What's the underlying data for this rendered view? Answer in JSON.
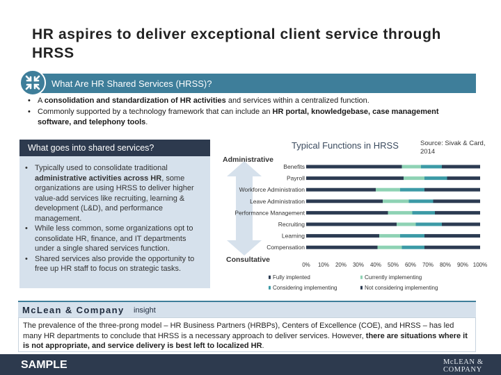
{
  "slide": {
    "title": "HR aspires to deliver exceptional client service through HRSS",
    "banner_label": "What Are HR Shared Services (HRSS)?",
    "intro_bullets": [
      {
        "pre": "A ",
        "bold": "consolidation and standardization of HR activities",
        "post": " and services within a centralized function."
      },
      {
        "pre": "Commonly supported by a technology framework that can include an ",
        "bold": "HR portal, knowledgebase, case management software, and telephony tools",
        "post": "."
      }
    ],
    "left_panel": {
      "header": "What goes into shared services?",
      "bullets": [
        {
          "pre": "Typically used to consolidate traditional ",
          "bold": "administrative activities across HR",
          "post": ", some organizations are using HRSS to deliver higher value-add services like recruiting, learning & development (L&D), and performance management."
        },
        {
          "pre": "While less common, some organizations opt to consolidate HR, finance, and IT departments under a single shared services function.",
          "bold": "",
          "post": ""
        },
        {
          "pre": "Shared services also provide the opportunity to free up HR staff to focus on strategic tasks.",
          "bold": "",
          "post": ""
        }
      ]
    },
    "insight": {
      "brand": "McLean & Company",
      "tag": "insight",
      "pre": "The prevalence of the three-prong model – HR Business Partners (HRBPs), Centers of Excellence (COE), and HRSS – has led many HR departments to conclude that HRSS is a necessary approach to deliver services. However, ",
      "bold": "there are situations where it is not appropriate, and service delivery is best left to localized HR",
      "post": "."
    },
    "footer": {
      "label": "SAMPLE",
      "logo_line1": "McLEAN &",
      "logo_line2": "COMPANY"
    }
  },
  "chart_data": {
    "type": "bar",
    "orientation": "horizontal",
    "stacked": true,
    "title": "Typical Functions in HRSS",
    "source": "Source: Sivak & Card, 2014",
    "axis_top_label": "Administrative",
    "axis_bottom_label": "Consultative",
    "categories": [
      "Benefits",
      "Payroll",
      "Workforce Administration",
      "Leave Administration",
      "Performance Management",
      "Recruiting",
      "Learning",
      "Compensation"
    ],
    "xlim": [
      0,
      100
    ],
    "xticks": [
      "0%",
      "10%",
      "20%",
      "30%",
      "40%",
      "50%",
      "60%",
      "70%",
      "80%",
      "90%",
      "100%"
    ],
    "series": [
      {
        "name": "Fully implented",
        "color": "#2c3b52",
        "values": [
          55,
          56,
          40,
          44,
          47,
          52,
          42,
          41
        ]
      },
      {
        "name": "Currently implementing",
        "color": "#8ed2b4",
        "values": [
          11,
          12,
          14,
          15,
          14,
          11,
          12,
          14
        ]
      },
      {
        "name": "Considering implementing",
        "color": "#3c9aa6",
        "values": [
          12,
          13,
          14,
          14,
          13,
          15,
          14,
          13
        ]
      },
      {
        "name": "Not considering implementing",
        "color": "#2c3b52",
        "values": [
          22,
          19,
          32,
          27,
          26,
          22,
          32,
          32
        ]
      }
    ],
    "legend": {
      "placement": "bottom"
    }
  }
}
